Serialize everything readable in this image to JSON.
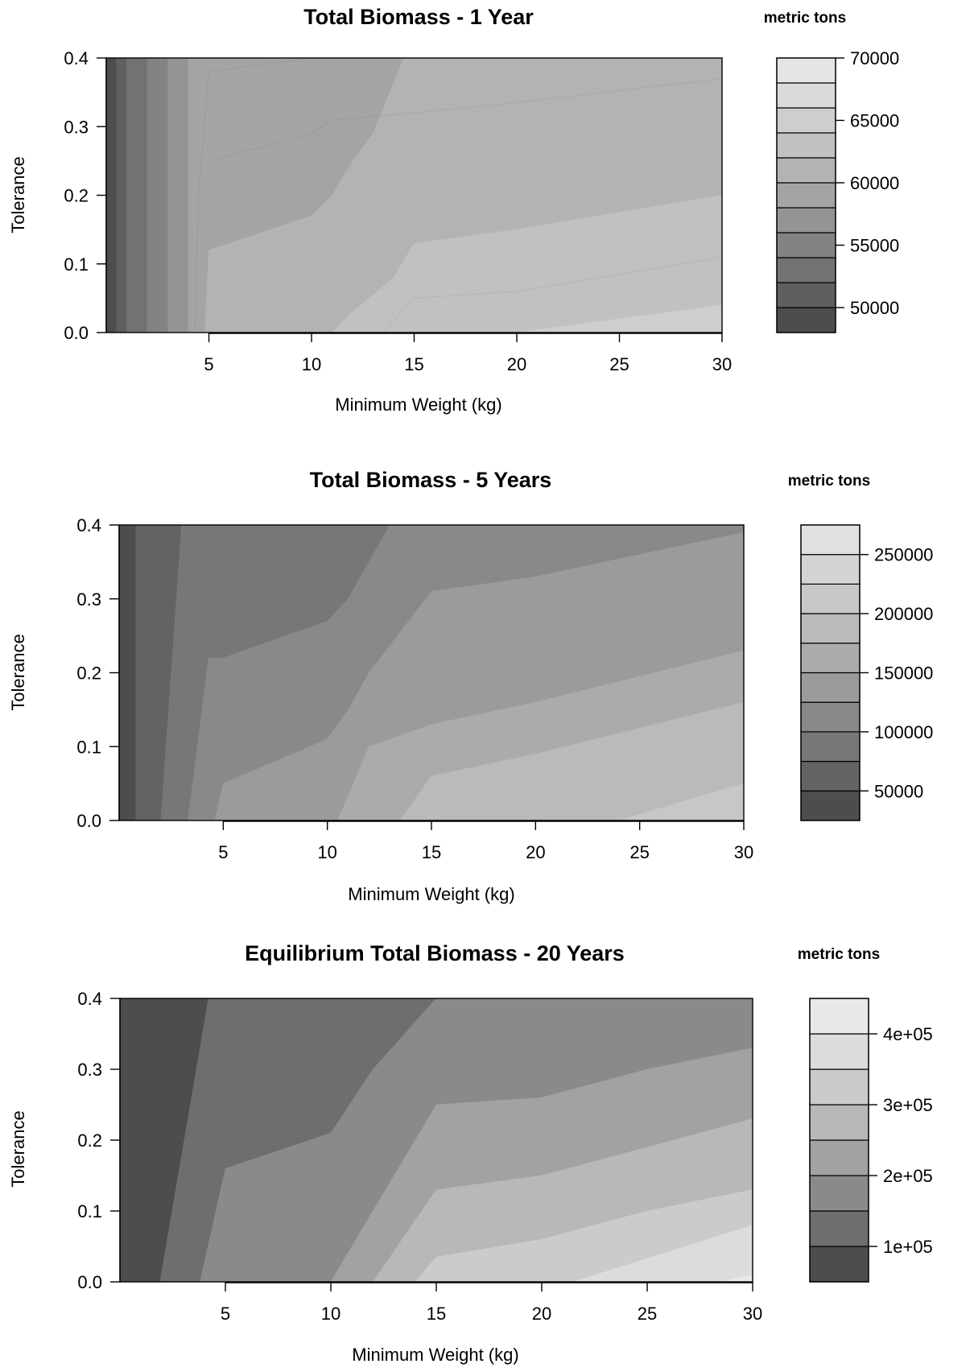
{
  "chart_data": [
    {
      "type": "contour",
      "title": "Total Biomass -  1  Year",
      "legend_title": "metric tons",
      "xlabel": "Minimum Weight (kg)",
      "ylabel": "Tolerance",
      "xlim": [
        0,
        30
      ],
      "ylim": [
        0,
        0.4
      ],
      "x_ticks": [
        "5",
        "10",
        "15",
        "20",
        "25",
        "30"
      ],
      "y_ticks": [
        "0.0",
        "0.1",
        "0.2",
        "0.3",
        "0.4"
      ],
      "levels": [
        48000,
        50000,
        52000,
        54000,
        56000,
        58000,
        60000,
        62000,
        64000,
        66000,
        68000,
        70000
      ],
      "legend_ticks": [
        "50000",
        "55000",
        "60000",
        "65000",
        "70000"
      ],
      "legend_tick_values": [
        50000,
        55000,
        60000,
        65000,
        70000
      ],
      "colors": [
        "#4d4d4d",
        "#5f5f5f",
        "#727272",
        "#838383",
        "#949494",
        "#a4a4a4",
        "#b3b3b3",
        "#c1c1c1",
        "#cecece",
        "#dadada",
        "#e5e5e5"
      ],
      "boundaries": [
        [
          [
            0.5,
            0
          ],
          [
            0.5,
            0.4
          ]
        ],
        [
          [
            1.0,
            0
          ],
          [
            1.0,
            0.4
          ]
        ],
        [
          [
            2.0,
            0
          ],
          [
            2.0,
            0.4
          ]
        ],
        [
          [
            3.0,
            0
          ],
          [
            3.0,
            0.4
          ]
        ],
        [
          [
            4.0,
            0
          ],
          [
            4.0,
            0.4
          ]
        ],
        [
          [
            4.8,
            0
          ],
          [
            5,
            0.12
          ],
          [
            10,
            0.17
          ],
          [
            11,
            0.2
          ],
          [
            12,
            0.25
          ],
          [
            13,
            0.29
          ],
          [
            14.5,
            0.4
          ]
        ],
        [
          [
            11,
            0
          ],
          [
            12,
            0.03
          ],
          [
            14,
            0.08
          ],
          [
            15,
            0.13
          ],
          [
            20,
            0.15
          ],
          [
            30,
            0.2
          ],
          [
            30,
            0.4
          ]
        ],
        [
          [
            20,
            0
          ],
          [
            30,
            0.04
          ],
          [
            30,
            0.4
          ]
        ]
      ],
      "extra_lines": [
        [
          [
            13.5,
            0
          ],
          [
            15,
            0.05
          ],
          [
            20,
            0.06
          ],
          [
            30,
            0.11
          ]
        ],
        [
          [
            5,
            0.25
          ],
          [
            10,
            0.29
          ],
          [
            11,
            0.31
          ],
          [
            15,
            0.32
          ],
          [
            20,
            0.335
          ],
          [
            30,
            0.37
          ]
        ],
        [
          [
            4.3,
            0
          ],
          [
            4.5,
            0.2
          ],
          [
            5,
            0.38
          ],
          [
            10,
            0.4
          ]
        ]
      ]
    },
    {
      "type": "contour",
      "title": "Total Biomass -  5  Years",
      "legend_title": "metric tons",
      "xlabel": "Minimum Weight (kg)",
      "ylabel": "Tolerance",
      "xlim": [
        0,
        30
      ],
      "ylim": [
        0,
        0.4
      ],
      "x_ticks": [
        "5",
        "10",
        "15",
        "20",
        "25",
        "30"
      ],
      "y_ticks": [
        "0.0",
        "0.1",
        "0.2",
        "0.3",
        "0.4"
      ],
      "levels": [
        25000,
        50000,
        75000,
        100000,
        125000,
        150000,
        175000,
        200000,
        225000,
        250000,
        275000
      ],
      "legend_ticks": [
        "50000",
        "100000",
        "150000",
        "200000",
        "250000"
      ],
      "legend_tick_values": [
        50000,
        100000,
        150000,
        200000,
        250000
      ],
      "colors": [
        "#4d4d4d",
        "#636363",
        "#777777",
        "#898989",
        "#9b9b9b",
        "#ababab",
        "#bababa",
        "#c7c7c7",
        "#d4d4d4",
        "#e0e0e0"
      ],
      "boundaries": [
        [
          [
            0.8,
            0
          ],
          [
            0.8,
            0.4
          ]
        ],
        [
          [
            2.0,
            0
          ],
          [
            2.5,
            0.2
          ],
          [
            3.0,
            0.4
          ]
        ],
        [
          [
            3.3,
            0
          ],
          [
            4.3,
            0.22
          ],
          [
            5,
            0.22
          ],
          [
            10,
            0.27
          ],
          [
            11,
            0.3
          ],
          [
            13,
            0.4
          ]
        ],
        [
          [
            4.6,
            0
          ],
          [
            5,
            0.05
          ],
          [
            10,
            0.11
          ],
          [
            11,
            0.15
          ],
          [
            12,
            0.2
          ],
          [
            15,
            0.31
          ],
          [
            20,
            0.33
          ],
          [
            30,
            0.39
          ]
        ],
        [
          [
            10.5,
            0
          ],
          [
            12,
            0.1
          ],
          [
            15,
            0.13
          ],
          [
            20,
            0.16
          ],
          [
            30,
            0.23
          ]
        ],
        [
          [
            13.5,
            0
          ],
          [
            15,
            0.06
          ],
          [
            20,
            0.09
          ],
          [
            30,
            0.16
          ]
        ],
        [
          [
            24,
            0
          ],
          [
            30,
            0.05
          ]
        ]
      ],
      "extra_lines": []
    },
    {
      "type": "contour",
      "title": "Equilibrium Total Biomass  -   20  Years",
      "legend_title": "metric tons",
      "xlabel": "Minimum Weight (kg)",
      "ylabel": "Tolerance",
      "xlim": [
        0,
        30
      ],
      "ylim": [
        0,
        0.4
      ],
      "x_ticks": [
        "5",
        "10",
        "15",
        "20",
        "25",
        "30"
      ],
      "y_ticks": [
        "0.0",
        "0.1",
        "0.2",
        "0.3",
        "0.4"
      ],
      "levels": [
        50000,
        100000,
        150000,
        200000,
        250000,
        300000,
        350000,
        400000,
        450000
      ],
      "legend_ticks": [
        "1e+05",
        "2e+05",
        "3e+05",
        "4e+05"
      ],
      "legend_tick_values": [
        100000,
        200000,
        300000,
        400000
      ],
      "colors": [
        "#4d4d4d",
        "#6e6e6e",
        "#8a8a8a",
        "#a2a2a2",
        "#b8b8b8",
        "#cbcbcb",
        "#dcdcdc",
        "#e8e8e8"
      ],
      "boundaries": [
        [
          [
            1.9,
            0
          ],
          [
            4.2,
            0.4
          ]
        ],
        [
          [
            3.8,
            0
          ],
          [
            5,
            0.16
          ],
          [
            10,
            0.21
          ],
          [
            12,
            0.3
          ],
          [
            15,
            0.4
          ]
        ],
        [
          [
            10,
            0
          ],
          [
            12,
            0.1
          ],
          [
            14,
            0.2
          ],
          [
            15,
            0.25
          ],
          [
            20,
            0.26
          ],
          [
            25,
            0.3
          ],
          [
            30,
            0.33
          ]
        ],
        [
          [
            12,
            0
          ],
          [
            15,
            0.13
          ],
          [
            20,
            0.15
          ],
          [
            30,
            0.23
          ]
        ],
        [
          [
            14,
            0
          ],
          [
            15,
            0.035
          ],
          [
            20,
            0.06
          ],
          [
            25,
            0.1
          ],
          [
            30,
            0.13
          ]
        ],
        [
          [
            21.5,
            0
          ],
          [
            30,
            0.08
          ]
        ],
        [
          [
            28.5,
            0
          ],
          [
            30,
            0.01
          ]
        ]
      ],
      "extra_lines": []
    }
  ]
}
